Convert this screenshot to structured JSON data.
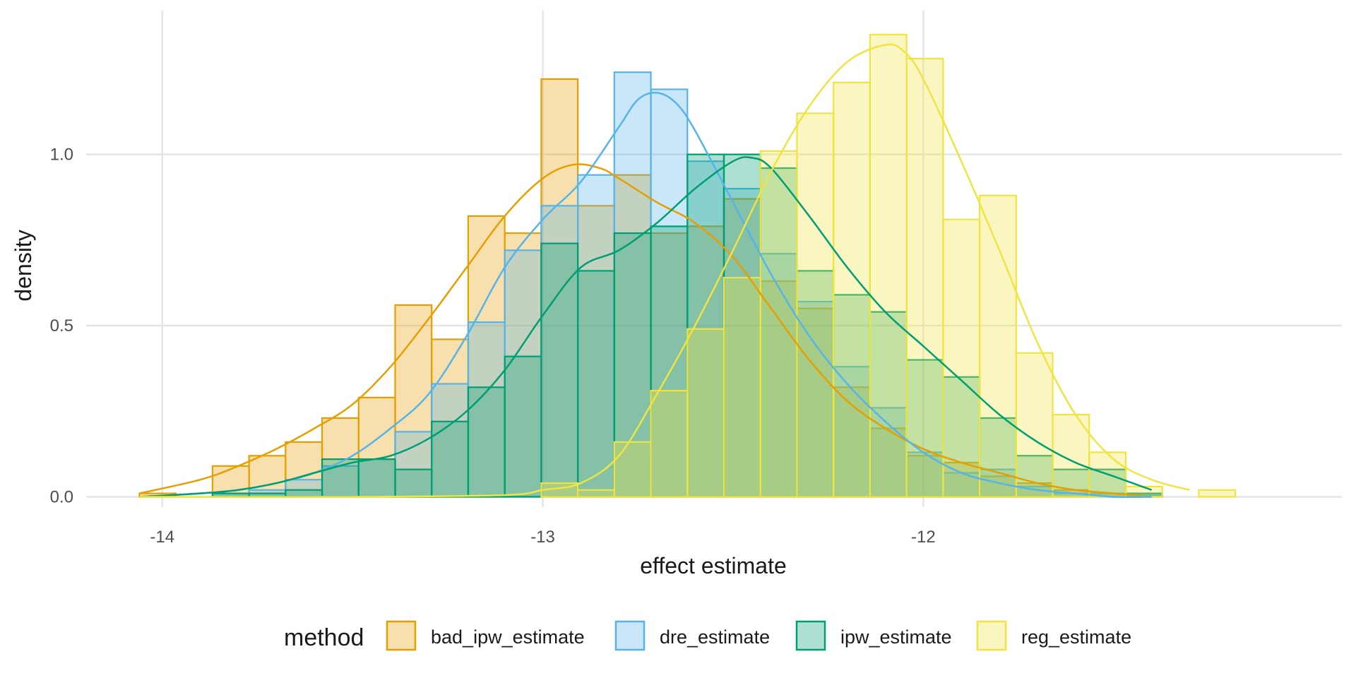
{
  "chart_data": {
    "type": "histogram+density",
    "title": "",
    "xlabel": "effect estimate",
    "ylabel": "density",
    "xlim": [
      -14.2,
      -10.9
    ],
    "ylim": [
      -0.03,
      1.42
    ],
    "x_ticks": [
      -14,
      -13,
      -12
    ],
    "x_tick_labels": [
      "-14",
      "-13",
      "-12"
    ],
    "y_ticks": [
      0.0,
      0.5,
      1.0
    ],
    "y_tick_labels": [
      "0.0",
      "0.5",
      "1.0"
    ],
    "grid": true,
    "legend_position": "bottom",
    "legend_title": "method",
    "bin_width": 0.096,
    "series": [
      {
        "name": "bad_ipw_estimate",
        "color": "#E69F00",
        "bin_starts": [
          -14.06,
          -13.964,
          -13.868,
          -13.772,
          -13.676,
          -13.58,
          -13.484,
          -13.388,
          -13.292,
          -13.196,
          -13.1,
          -13.004,
          -12.908,
          -12.812,
          -12.716,
          -12.62,
          -12.524,
          -12.428,
          -12.332,
          -12.236,
          -12.14,
          -12.044,
          -11.948,
          -11.852,
          -11.756,
          -11.66,
          -11.564,
          -11.468
        ],
        "values": [
          0.01,
          0,
          0.09,
          0.12,
          0.16,
          0.23,
          0.29,
          0.56,
          0.46,
          0.82,
          0.77,
          1.22,
          0.85,
          0.94,
          0.77,
          0.79,
          0.87,
          0.63,
          0.55,
          0.32,
          0.2,
          0.12,
          0.1,
          0.06,
          0.04,
          0.02,
          0.01,
          0.005
        ],
        "density_x": [
          -14.06,
          -13.9,
          -13.8,
          -13.7,
          -13.6,
          -13.5,
          -13.4,
          -13.3,
          -13.2,
          -13.1,
          -13.0,
          -12.92,
          -12.85,
          -12.8,
          -12.7,
          -12.6,
          -12.5,
          -12.4,
          -12.3,
          -12.2,
          -12.1,
          -12.0,
          -11.9,
          -11.8,
          -11.7,
          -11.6,
          -11.5,
          -11.4
        ],
        "density_y": [
          0.01,
          0.05,
          0.09,
          0.14,
          0.2,
          0.27,
          0.38,
          0.52,
          0.67,
          0.82,
          0.93,
          0.97,
          0.96,
          0.93,
          0.86,
          0.8,
          0.7,
          0.55,
          0.4,
          0.28,
          0.2,
          0.14,
          0.1,
          0.07,
          0.04,
          0.02,
          0.01,
          0.0
        ]
      },
      {
        "name": "dre_estimate",
        "color": "#56B4E9",
        "bin_starts": [
          -14.06,
          -13.964,
          -13.868,
          -13.772,
          -13.676,
          -13.58,
          -13.484,
          -13.388,
          -13.292,
          -13.196,
          -13.1,
          -13.004,
          -12.908,
          -12.812,
          -12.716,
          -12.62,
          -12.524,
          -12.428,
          -12.332,
          -12.236,
          -12.14,
          -12.044,
          -11.948,
          -11.852,
          -11.756,
          -11.66,
          -11.564,
          -11.468
        ],
        "values": [
          0,
          0,
          0.01,
          0.02,
          0.05,
          0.09,
          0.11,
          0.19,
          0.33,
          0.51,
          0.72,
          0.85,
          0.94,
          1.24,
          1.19,
          0.98,
          0.9,
          0.71,
          0.57,
          0.38,
          0.26,
          0.13,
          0.07,
          0.08,
          0.03,
          0.01,
          0.01,
          0.005
        ],
        "density_x": [
          -14.06,
          -13.9,
          -13.8,
          -13.7,
          -13.6,
          -13.5,
          -13.4,
          -13.3,
          -13.2,
          -13.1,
          -13.0,
          -12.9,
          -12.8,
          -12.75,
          -12.7,
          -12.65,
          -12.6,
          -12.5,
          -12.4,
          -12.3,
          -12.2,
          -12.1,
          -12.0,
          -11.9,
          -11.8,
          -11.7,
          -11.6,
          -11.5,
          -11.4
        ],
        "density_y": [
          0,
          0.01,
          0.02,
          0.04,
          0.07,
          0.12,
          0.2,
          0.3,
          0.47,
          0.67,
          0.81,
          0.92,
          1.08,
          1.16,
          1.18,
          1.15,
          1.07,
          0.86,
          0.65,
          0.47,
          0.33,
          0.22,
          0.13,
          0.07,
          0.04,
          0.02,
          0.01,
          0.0,
          0.0
        ]
      },
      {
        "name": "ipw_estimate",
        "color": "#009E73",
        "bin_starts": [
          -14.06,
          -13.964,
          -13.868,
          -13.772,
          -13.676,
          -13.58,
          -13.484,
          -13.388,
          -13.292,
          -13.196,
          -13.1,
          -13.004,
          -12.908,
          -12.812,
          -12.716,
          -12.62,
          -12.524,
          -12.428,
          -12.332,
          -12.236,
          -12.14,
          -12.044,
          -11.948,
          -11.852,
          -11.756,
          -11.66,
          -11.564,
          -11.468
        ],
        "values": [
          0,
          0,
          0.01,
          0.01,
          0.02,
          0.11,
          0.11,
          0.08,
          0.22,
          0.32,
          0.41,
          0.74,
          0.66,
          0.77,
          0.79,
          1.0,
          1.0,
          0.96,
          0.66,
          0.59,
          0.54,
          0.4,
          0.35,
          0.23,
          0.12,
          0.08,
          0.08,
          0.01
        ],
        "density_x": [
          -14.06,
          -13.9,
          -13.8,
          -13.7,
          -13.6,
          -13.5,
          -13.4,
          -13.3,
          -13.2,
          -13.1,
          -13.0,
          -12.9,
          -12.8,
          -12.7,
          -12.6,
          -12.5,
          -12.45,
          -12.4,
          -12.3,
          -12.2,
          -12.1,
          -12.0,
          -11.9,
          -11.8,
          -11.7,
          -11.6,
          -11.5,
          -11.4
        ],
        "density_y": [
          0,
          0.01,
          0.02,
          0.04,
          0.07,
          0.1,
          0.12,
          0.17,
          0.25,
          0.37,
          0.53,
          0.67,
          0.72,
          0.8,
          0.9,
          0.98,
          0.99,
          0.96,
          0.82,
          0.67,
          0.54,
          0.44,
          0.34,
          0.24,
          0.16,
          0.1,
          0.06,
          0.02
        ]
      },
      {
        "name": "reg_estimate",
        "color": "#F0E442",
        "bin_starts": [
          -14.06,
          -13.964,
          -13.868,
          -13.772,
          -13.676,
          -13.58,
          -13.484,
          -13.388,
          -13.292,
          -13.196,
          -13.1,
          -13.004,
          -12.908,
          -12.812,
          -12.716,
          -12.62,
          -12.524,
          -12.428,
          -12.332,
          -12.236,
          -12.14,
          -12.044,
          -11.948,
          -11.852,
          -11.756,
          -11.66,
          -11.564,
          -11.468,
          -11.372,
          -11.276
        ],
        "values": [
          0,
          0,
          0,
          0,
          0,
          0,
          0,
          0,
          0,
          0,
          0,
          0.04,
          0.02,
          0.16,
          0.31,
          0.49,
          0.64,
          1.01,
          1.12,
          1.21,
          1.35,
          1.28,
          0.81,
          0.88,
          0.42,
          0.24,
          0.13,
          0.03,
          0.0,
          0.02
        ],
        "density_x": [
          -14.06,
          -13.5,
          -13.1,
          -13.0,
          -12.9,
          -12.8,
          -12.7,
          -12.6,
          -12.5,
          -12.4,
          -12.3,
          -12.2,
          -12.1,
          -12.05,
          -12.0,
          -11.9,
          -11.8,
          -11.7,
          -11.6,
          -11.5,
          -11.4,
          -11.3
        ],
        "density_y": [
          0,
          0,
          0.005,
          0.02,
          0.04,
          0.12,
          0.3,
          0.5,
          0.72,
          0.95,
          1.14,
          1.27,
          1.32,
          1.3,
          1.22,
          0.98,
          0.72,
          0.45,
          0.24,
          0.11,
          0.05,
          0.02
        ]
      }
    ]
  }
}
